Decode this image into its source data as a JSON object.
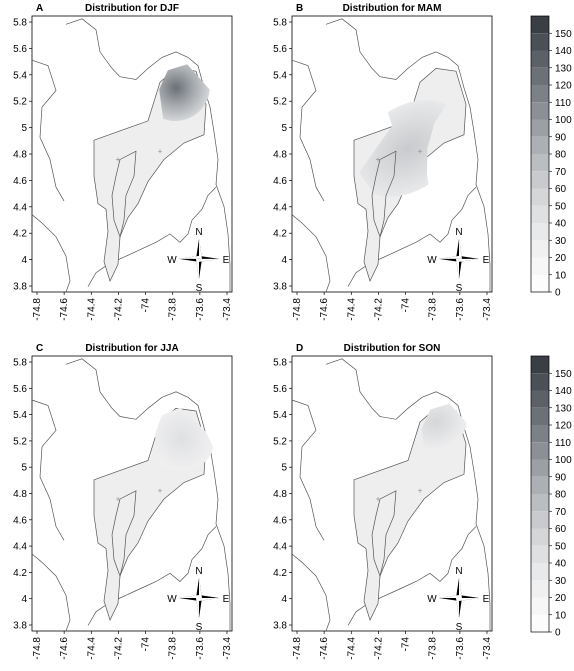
{
  "panels": [
    {
      "letter": "A",
      "title": "Distribution for DJF",
      "blob": "djf"
    },
    {
      "letter": "B",
      "title": "Distribution for MAM",
      "blob": "mam"
    },
    {
      "letter": "C",
      "title": "Distribution for JJA",
      "blob": "jja"
    },
    {
      "letter": "D",
      "title": "Distribution for SON",
      "blob": "son"
    }
  ],
  "y_ticks": [
    "5.8",
    "5.6",
    "5.4",
    "5.2",
    "5",
    "4.8",
    "4.6",
    "4.4",
    "4.2",
    "4",
    "3.8"
  ],
  "x_ticks": [
    "-74.8",
    "-74.6",
    "-74.4",
    "-74.2",
    "-74",
    "-73.8",
    "-73.6",
    "-73.4"
  ],
  "compass": {
    "n": "N",
    "s": "S",
    "e": "E",
    "w": "W"
  },
  "colorbar": {
    "levels": [
      "150",
      "140",
      "130",
      "120",
      "110",
      "100",
      "90",
      "80",
      "70",
      "60",
      "50",
      "40",
      "30",
      "20",
      "10",
      "0"
    ],
    "colors": [
      "#3a3f45",
      "#4b5057",
      "#5c6168",
      "#6c7178",
      "#7c8187",
      "#8c9096",
      "#9ca0a5",
      "#acafb3",
      "#bbbec1",
      "#c8cacd",
      "#d4d6d8",
      "#dfe0e2",
      "#e8e9ea",
      "#f0f0f1",
      "#f6f6f7",
      "#fcfcfc"
    ]
  }
}
